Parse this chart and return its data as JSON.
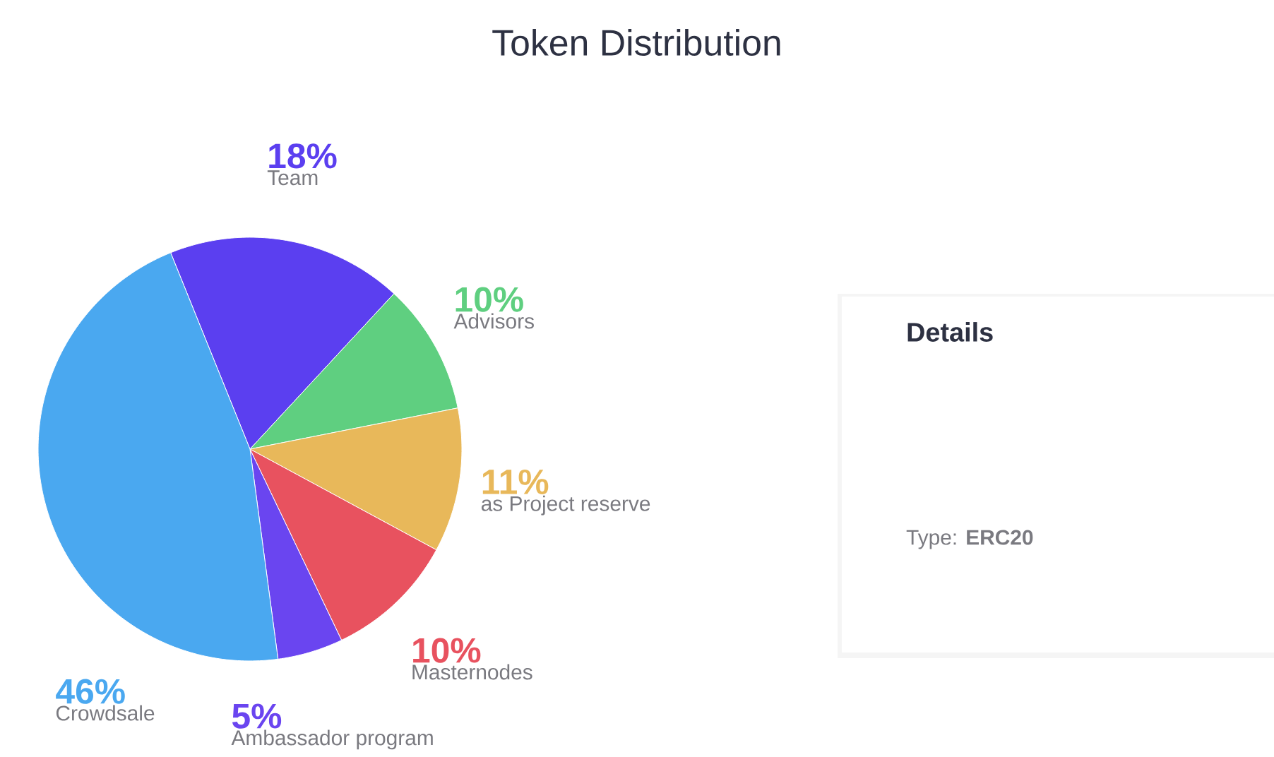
{
  "chart_data": [
    {
      "type": "pie",
      "title": "Token Distribution",
      "categories": [
        "Team",
        "Advisors",
        "as Project reserve",
        "Masternodes",
        "Ambassador program",
        "Crowdsale"
      ],
      "values": [
        18,
        10,
        11,
        10,
        5,
        46
      ],
      "value_labels": [
        "18%",
        "10%",
        "11%",
        "10%",
        "5%",
        "46%"
      ],
      "colors": [
        "#5b3ff0",
        "#5fcf80",
        "#e8b85a",
        "#e8525f",
        "#6a45f0",
        "#4aa8f0"
      ]
    },
    {
      "type": "other",
      "title": "Details",
      "annotations": [
        "Type: **ERC20**"
      ]
    }
  ]
}
